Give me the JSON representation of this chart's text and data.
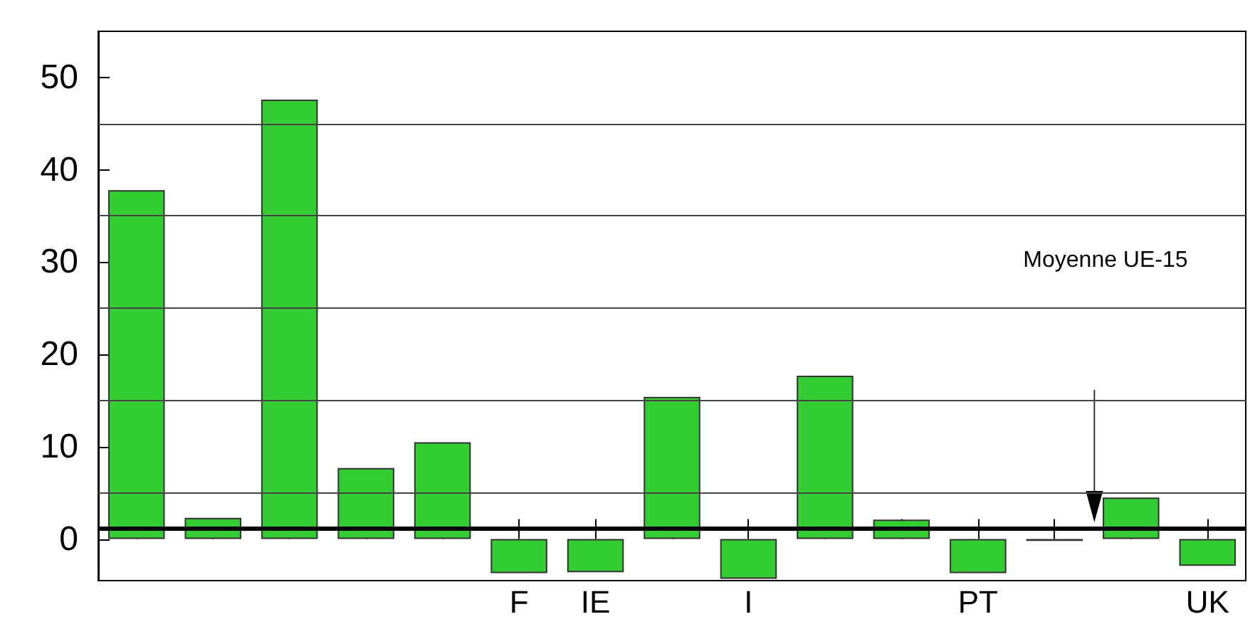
{
  "chart_data": {
    "type": "bar",
    "categories": [
      null,
      null,
      null,
      null,
      null,
      "F",
      "IE",
      null,
      "I",
      null,
      null,
      "PT",
      null,
      null,
      "UK"
    ],
    "values": [
      37.8,
      2.3,
      47.6,
      7.7,
      10.5,
      -3.7,
      -3.6,
      15.4,
      -4.3,
      17.7,
      2.1,
      -3.7,
      -0.2,
      4.5,
      -2.9
    ],
    "color": "#33cc33",
    "ylim": [
      -4.5,
      55
    ],
    "yticks": [
      0,
      {
        "value": 5,
        "label": null
      },
      10,
      {
        "value": 15,
        "label": null
      },
      20,
      {
        "value": 25,
        "label": null
      },
      30,
      {
        "value": 35,
        "label": null
      },
      40,
      {
        "value": 45,
        "label": null
      },
      50
    ],
    "grid": "y",
    "ref_lines": [
      {
        "axis": "y",
        "value": 1.2,
        "label": "Moyenne UE-15",
        "color": "#000000"
      }
    ]
  }
}
